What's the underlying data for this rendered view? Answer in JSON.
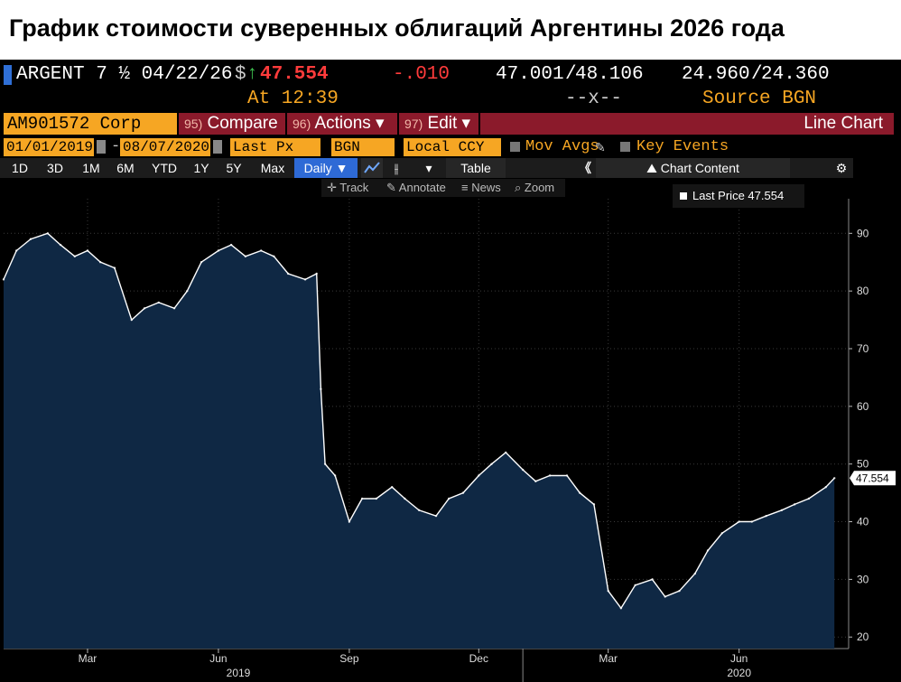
{
  "headline": "График стоимости суверенных облигаций Аргентины 2026 года",
  "quote": {
    "ticker": "ARGENT 7 ½ 04/22/26",
    "currency_symbol": "$",
    "arrow": "↑",
    "last": "47.554",
    "change": "-.010",
    "bid": "47.001",
    "ask": "48.106",
    "bid_yield": "24.960",
    "ask_yield": "24.360",
    "sep": "/",
    "time_label": "At 12:39",
    "size_label": "--x--",
    "source_label": "Source BGN"
  },
  "toolbar": {
    "security": "AM901572 Corp",
    "compare_num": "95)",
    "compare_label": "Compare",
    "actions_num": "96)",
    "actions_label": "Actions ▾",
    "edit_num": "97)",
    "edit_label": "Edit ▾",
    "chart_type": "Line Chart",
    "start_date": "01/01/2019",
    "dash": "-",
    "end_date": "08/07/2020",
    "field": "Last Px",
    "source": "BGN",
    "currency": "Local CCY",
    "mov_avgs": "Mov Avgs",
    "key_events": "Key Events",
    "periods": [
      "1D",
      "3D",
      "1M",
      "6M",
      "YTD",
      "1Y",
      "5Y",
      "Max"
    ],
    "frequency": "Daily ▼",
    "table": "Table",
    "collapse": "《",
    "chart_content": "Chart Content",
    "gear": "⚙",
    "track": "Track",
    "annotate": "Annotate",
    "news": "News",
    "zoom": "Zoom"
  },
  "colors": {
    "background": "#000000",
    "area_fill": "#0f2844",
    "line": "#ffffff",
    "orange": "#f6a623",
    "red_bar": "#8b1a2b",
    "positive": "#3ec24f",
    "negative": "#ff3b3b",
    "selected": "#2e6ad6"
  },
  "chart_data": {
    "type": "area",
    "series": [
      {
        "name": "Last Price",
        "label": "Last Price 47.554",
        "last_value_label": "47.554",
        "x": [
          "2019-01-01",
          "2019-01-10",
          "2019-01-20",
          "2019-02-01",
          "2019-02-10",
          "2019-02-20",
          "2019-03-01",
          "2019-03-10",
          "2019-03-20",
          "2019-04-01",
          "2019-04-10",
          "2019-04-20",
          "2019-05-01",
          "2019-05-10",
          "2019-05-20",
          "2019-06-01",
          "2019-06-10",
          "2019-06-20",
          "2019-07-01",
          "2019-07-10",
          "2019-07-20",
          "2019-08-01",
          "2019-08-09",
          "2019-08-12",
          "2019-08-15",
          "2019-08-22",
          "2019-09-01",
          "2019-09-10",
          "2019-09-20",
          "2019-10-01",
          "2019-10-10",
          "2019-10-20",
          "2019-11-01",
          "2019-11-10",
          "2019-11-20",
          "2019-12-01",
          "2019-12-10",
          "2019-12-20",
          "2020-01-01",
          "2020-01-10",
          "2020-01-20",
          "2020-02-01",
          "2020-02-10",
          "2020-02-20",
          "2020-03-01",
          "2020-03-10",
          "2020-03-20",
          "2020-04-01",
          "2020-04-10",
          "2020-04-20",
          "2020-05-01",
          "2020-05-10",
          "2020-05-20",
          "2020-06-01",
          "2020-06-10",
          "2020-06-20",
          "2020-07-01",
          "2020-07-10",
          "2020-07-20",
          "2020-08-01",
          "2020-08-07"
        ],
        "values": [
          82,
          87,
          89,
          90,
          88,
          86,
          87,
          85,
          84,
          75,
          77,
          78,
          77,
          80,
          85,
          87,
          88,
          86,
          87,
          86,
          83,
          82,
          83,
          63,
          50,
          48,
          40,
          44,
          44,
          46,
          44,
          42,
          41,
          44,
          45,
          48,
          50,
          52,
          49,
          47,
          48,
          48,
          45,
          43,
          28,
          25,
          29,
          30,
          27,
          28,
          31,
          35,
          38,
          40,
          40,
          41,
          42,
          43,
          44,
          46,
          47.554
        ]
      }
    ],
    "x_ticks": [
      "Mar",
      "Jun",
      "Sep",
      "Dec",
      "Mar",
      "Jun"
    ],
    "x_tick_dates": [
      "2019-03-01",
      "2019-06-01",
      "2019-09-01",
      "2019-12-01",
      "2020-03-01",
      "2020-06-01"
    ],
    "x_years": [
      "2019",
      "2020"
    ],
    "x_year_dates": [
      "2019-06-15",
      "2020-06-01"
    ],
    "y_ticks": [
      20,
      30,
      40,
      50,
      60,
      70,
      80,
      90
    ],
    "ylim": [
      18,
      96
    ],
    "xlim": [
      "2019-01-01",
      "2020-08-17"
    ],
    "grid": true
  }
}
